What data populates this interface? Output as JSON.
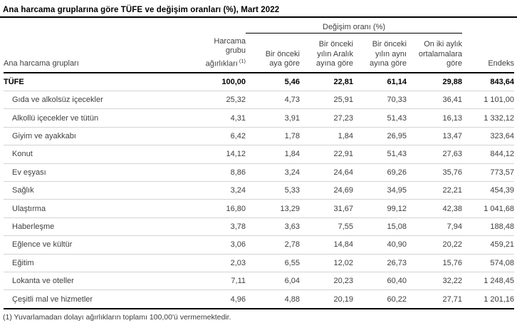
{
  "title": "Ana harcama gruplarına göre TÜFE ve değişim oranları (%), Mart 2022",
  "table": {
    "group_header": "Değişim oranı (%)",
    "columns": {
      "group": "Ana harcama grupları",
      "weight": "Harcama\ngrubu\nağırlıkları",
      "weight_note_ref": "(1)",
      "monthly": "Bir önceki\naya göre",
      "vs_december": "Bir önceki\nyılın Aralık\nayına göre",
      "vs_same_month": "Bir önceki\nyılın aynı\nayına göre",
      "twelve_month_avg": "On iki aylık\nortalamalara\ngöre",
      "index": "Endeks"
    },
    "rows": [
      {
        "label": "TÜFE",
        "bold": true,
        "indent": false,
        "values": [
          "100,00",
          "5,46",
          "22,81",
          "61,14",
          "29,88",
          "843,64"
        ]
      },
      {
        "label": "Gıda ve alkolsüz içecekler",
        "bold": false,
        "indent": true,
        "values": [
          "25,32",
          "4,73",
          "25,91",
          "70,33",
          "36,41",
          "1 101,00"
        ]
      },
      {
        "label": "Alkollü içecekler ve tütün",
        "bold": false,
        "indent": true,
        "values": [
          "4,31",
          "3,91",
          "27,23",
          "51,43",
          "16,13",
          "1 332,12"
        ]
      },
      {
        "label": "Giyim ve ayakkabı",
        "bold": false,
        "indent": true,
        "values": [
          "6,42",
          "1,78",
          "1,84",
          "26,95",
          "13,47",
          "323,64"
        ]
      },
      {
        "label": "Konut",
        "bold": false,
        "indent": true,
        "values": [
          "14,12",
          "1,84",
          "22,91",
          "51,43",
          "27,63",
          "844,12"
        ]
      },
      {
        "label": "Ev eşyası",
        "bold": false,
        "indent": true,
        "values": [
          "8,86",
          "3,24",
          "24,64",
          "69,26",
          "35,76",
          "773,57"
        ]
      },
      {
        "label": "Sağlık",
        "bold": false,
        "indent": true,
        "values": [
          "3,24",
          "5,33",
          "24,69",
          "34,95",
          "22,21",
          "454,39"
        ]
      },
      {
        "label": "Ulaştırma",
        "bold": false,
        "indent": true,
        "values": [
          "16,80",
          "13,29",
          "31,67",
          "99,12",
          "42,38",
          "1 041,68"
        ]
      },
      {
        "label": "Haberleşme",
        "bold": false,
        "indent": true,
        "values": [
          "3,78",
          "3,63",
          "7,55",
          "15,08",
          "7,94",
          "188,48"
        ]
      },
      {
        "label": "Eğlence ve kültür",
        "bold": false,
        "indent": true,
        "values": [
          "3,06",
          "2,78",
          "14,84",
          "40,90",
          "20,22",
          "459,21"
        ]
      },
      {
        "label": "Eğitim",
        "bold": false,
        "indent": true,
        "values": [
          "2,03",
          "6,55",
          "12,02",
          "26,73",
          "15,76",
          "574,08"
        ]
      },
      {
        "label": "Lokanta ve oteller",
        "bold": false,
        "indent": true,
        "values": [
          "7,11",
          "6,04",
          "20,23",
          "60,40",
          "32,22",
          "1 248,45"
        ]
      },
      {
        "label": "Çeşitli mal ve hizmetler",
        "bold": false,
        "indent": true,
        "values": [
          "4,96",
          "4,88",
          "20,19",
          "60,22",
          "27,71",
          "1 201,16"
        ]
      }
    ]
  },
  "footnote": "(1) Yuvarlamadan dolayı ağırlıkların toplamı 100,00'ü vermemektedir.",
  "colors": {
    "text": "#404040",
    "bold_text": "#000000",
    "rule_heavy": "#000000",
    "rule_light": "#d4d4d4",
    "background": "#ffffff"
  }
}
